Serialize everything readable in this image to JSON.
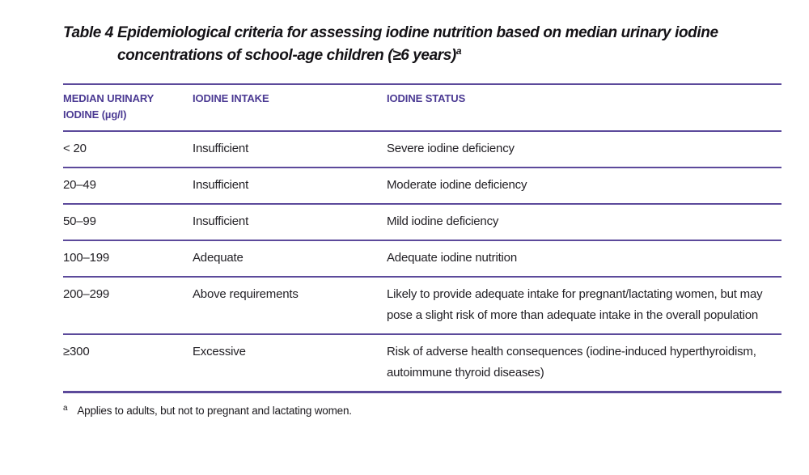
{
  "title": {
    "label": "Table 4",
    "text": "Epidemiological criteria for assessing iodine nutrition based on median urinary iodine concentrations of school-age children (≥6 years)",
    "footnote_marker": "a"
  },
  "colors": {
    "accent_text_purple": "#4b3a93",
    "rule_purple": "#5c4a9b",
    "body_text": "#232126",
    "background": "#ffffff"
  },
  "table": {
    "columns": [
      "MEDIAN URINARY IODINE (µg/l)",
      "IODINE INTAKE",
      "IODINE STATUS"
    ],
    "rows": [
      {
        "median_urinary_iodine": "< 20",
        "iodine_intake": "Insufficient",
        "iodine_status": "Severe iodine deficiency"
      },
      {
        "median_urinary_iodine": "20–49",
        "iodine_intake": "Insufficient",
        "iodine_status": "Moderate iodine deficiency"
      },
      {
        "median_urinary_iodine": "50–99",
        "iodine_intake": "Insufficient",
        "iodine_status": "Mild iodine deficiency"
      },
      {
        "median_urinary_iodine": "100–199",
        "iodine_intake": "Adequate",
        "iodine_status": "Adequate iodine nutrition"
      },
      {
        "median_urinary_iodine": "200–299",
        "iodine_intake": "Above requirements",
        "iodine_status": "Likely to provide adequate intake for pregnant/lactating women, but may pose a slight risk of more than adequate intake in the overall population"
      },
      {
        "median_urinary_iodine": "≥300",
        "iodine_intake": "Excessive",
        "iodine_status": "Risk of adverse health consequences (iodine-induced hyperthyroidism, autoimmune thyroid diseases)"
      }
    ]
  },
  "footnote": {
    "marker": "a",
    "text": "Applies to adults, but not to pregnant and lactating women."
  }
}
